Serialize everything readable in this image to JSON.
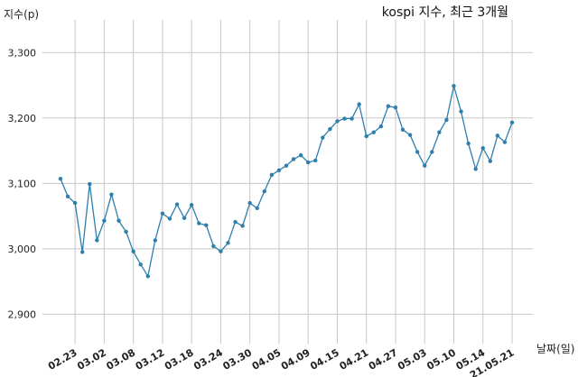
{
  "chart_data": {
    "type": "line",
    "title": "kospi 지수, 최근 3개월",
    "ylabel": "지수(p)",
    "xlabel": "날짜(일)",
    "ylim": [
      2855,
      3350
    ],
    "yticks": [
      2900,
      3000,
      3100,
      3200,
      3300
    ],
    "ytick_labels": [
      "2,900",
      "3,000",
      "3,100",
      "3,200",
      "3,300"
    ],
    "x_tick_labels": [
      "02.23",
      "03.02",
      "03.08",
      "03.12",
      "03.18",
      "03.24",
      "03.30",
      "04.05",
      "04.09",
      "04.15",
      "04.21",
      "04.27",
      "05.03",
      "05.10",
      "05.14",
      "21.05.21"
    ],
    "x_tick_indices": [
      2,
      6,
      10,
      14,
      18,
      22,
      26,
      30,
      34,
      38,
      42,
      46,
      50,
      54,
      58,
      62
    ],
    "grid": true,
    "series_color": "#2e7fad",
    "values": [
      3107,
      3080,
      3070,
      2995,
      3099,
      3013,
      3043,
      3083,
      3043,
      3026,
      2996,
      2976,
      2958,
      3013,
      3054,
      3046,
      3068,
      3047,
      3067,
      3039,
      3036,
      3004,
      2996,
      3009,
      3041,
      3035,
      3070,
      3062,
      3088,
      3113,
      3120,
      3127,
      3137,
      3143,
      3132,
      3135,
      3170,
      3183,
      3195,
      3199,
      3199,
      3221,
      3172,
      3178,
      3187,
      3218,
      3216,
      3182,
      3174,
      3148,
      3127,
      3148,
      3178,
      3197,
      3249,
      3210,
      3161,
      3122,
      3154,
      3134,
      3173,
      3163,
      3193
    ]
  }
}
